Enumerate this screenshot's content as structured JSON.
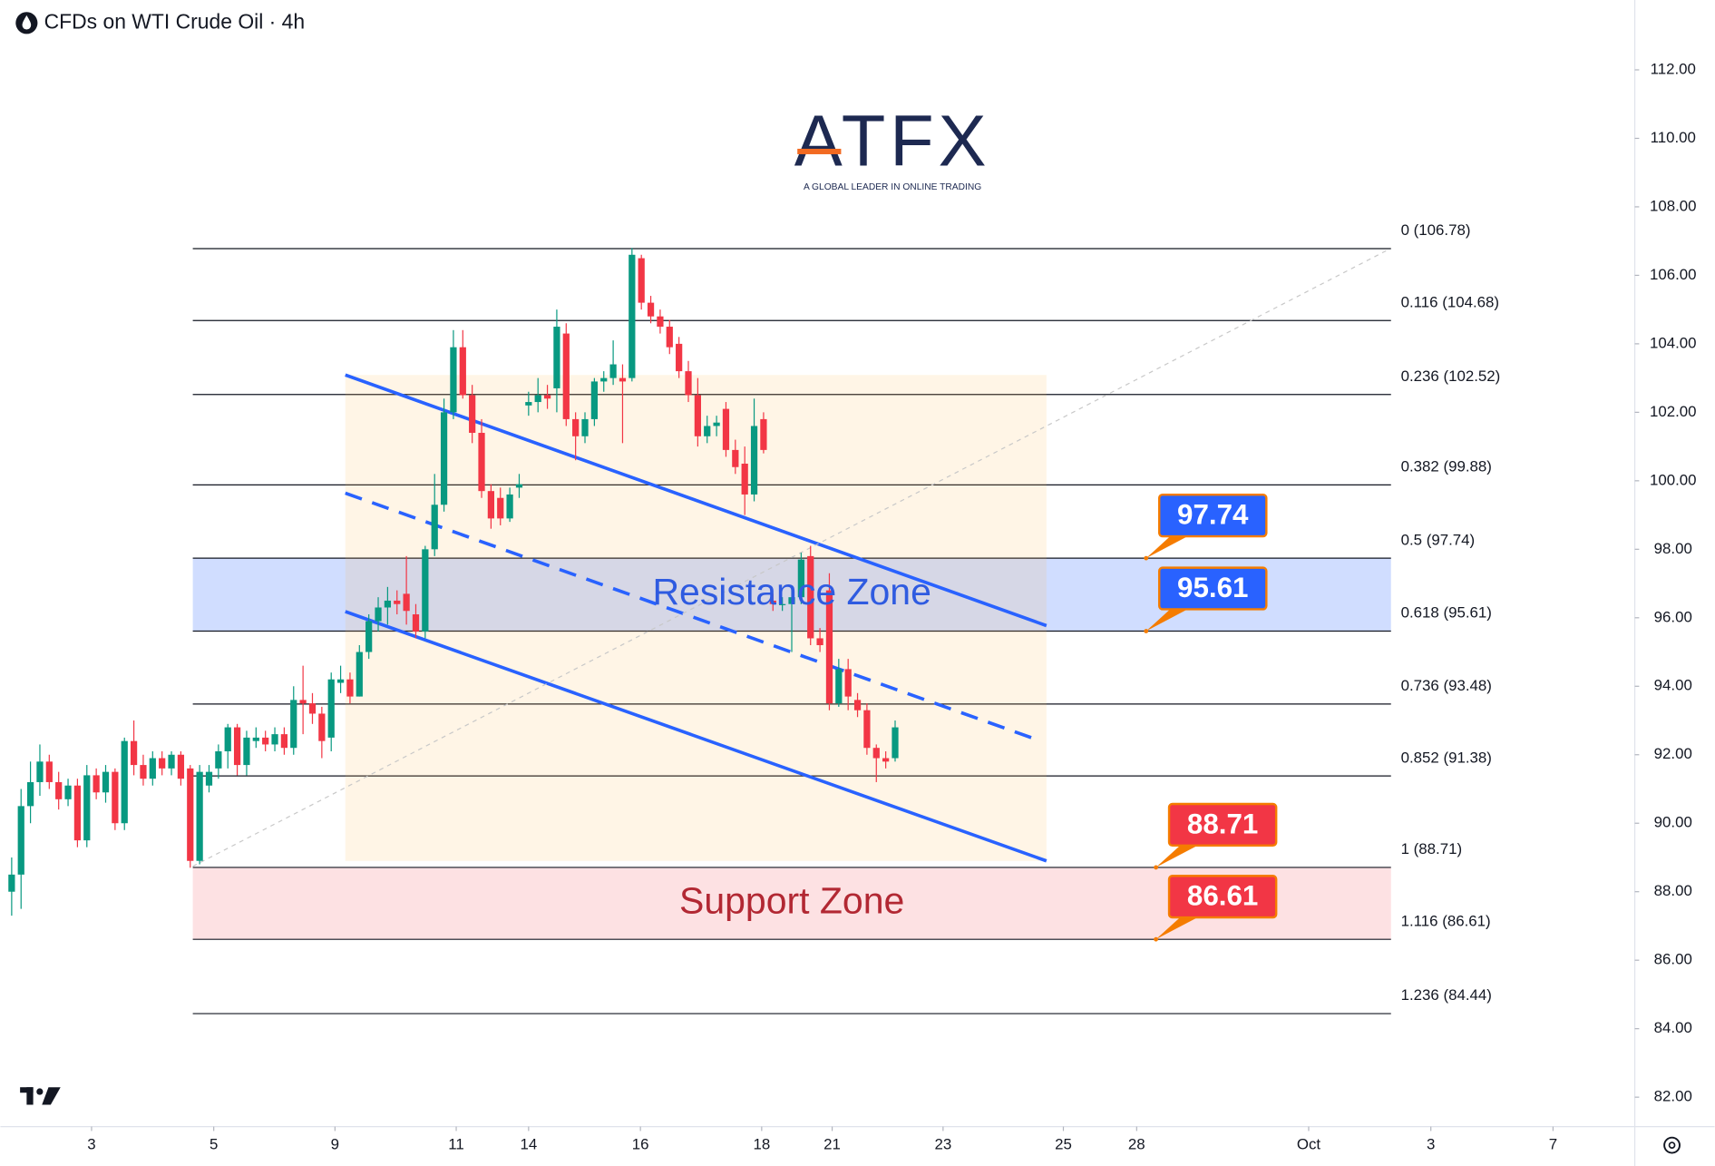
{
  "header": {
    "title": "CFDs on WTI Crude Oil · 4h"
  },
  "watermark": {
    "brand": "ATFX",
    "tagline": "A GLOBAL LEADER IN ONLINE TRADING"
  },
  "chart_data": {
    "type": "candlestick",
    "up_color": "#089981",
    "down_color": "#f23645",
    "ohlc": [
      [
        88,
        89,
        87.3,
        88.5
      ],
      [
        88.5,
        91,
        87.5,
        90.5
      ],
      [
        90.5,
        91.8,
        90,
        91.2
      ],
      [
        91.2,
        92.3,
        90.8,
        91.8
      ],
      [
        91.8,
        92,
        91,
        91.2
      ],
      [
        91.2,
        91.5,
        90.4,
        90.7
      ],
      [
        90.7,
        91.3,
        90.5,
        91.1
      ],
      [
        91.1,
        91.3,
        89.3,
        89.5
      ],
      [
        89.5,
        91.7,
        89.3,
        91.4
      ],
      [
        91.4,
        91.6,
        90.7,
        90.9
      ],
      [
        90.9,
        91.7,
        90.6,
        91.5
      ],
      [
        91.5,
        91.6,
        89.8,
        90
      ],
      [
        90,
        92.5,
        89.8,
        92.4
      ],
      [
        92.4,
        93,
        91.4,
        91.7
      ],
      [
        91.7,
        92,
        91.1,
        91.3
      ],
      [
        91.3,
        92.1,
        91.1,
        91.9
      ],
      [
        91.9,
        92.1,
        91.4,
        91.6
      ],
      [
        91.6,
        92.1,
        91.4,
        92
      ],
      [
        92,
        92.1,
        91.1,
        91.3
      ],
      [
        91.6,
        91.7,
        88.7,
        88.9
      ],
      [
        88.9,
        91.7,
        88.8,
        91.5
      ],
      [
        91.1,
        91.7,
        90.9,
        91.5
      ],
      [
        91.6,
        92.3,
        91.3,
        92.1
      ],
      [
        92.1,
        92.9,
        91.6,
        92.8
      ],
      [
        92.8,
        92.9,
        91.4,
        91.7
      ],
      [
        91.7,
        92.7,
        91.4,
        92.5
      ],
      [
        92.4,
        92.8,
        92.2,
        92.5
      ],
      [
        92.5,
        92.7,
        92.1,
        92.3
      ],
      [
        92.3,
        92.8,
        92.1,
        92.6
      ],
      [
        92.6,
        92.8,
        92,
        92.2
      ],
      [
        92.2,
        94,
        92,
        93.6
      ],
      [
        93.6,
        94.6,
        92.6,
        93.5
      ],
      [
        93.5,
        93.8,
        92.9,
        93.2
      ],
      [
        93.2,
        93.4,
        91.9,
        92.4
      ],
      [
        92.5,
        94.4,
        92.1,
        94.2
      ],
      [
        94.1,
        94.6,
        93.8,
        94.2
      ],
      [
        94.2,
        94.4,
        93.5,
        93.7
      ],
      [
        93.7,
        95.2,
        93.7,
        95
      ],
      [
        95,
        96.1,
        94.8,
        95.9
      ],
      [
        95.9,
        96.6,
        95.6,
        96.3
      ],
      [
        96.3,
        96.9,
        95.8,
        96.5
      ],
      [
        96.5,
        96.8,
        96.1,
        96.4
      ],
      [
        96.7,
        97.8,
        95.8,
        96.2
      ],
      [
        96.1,
        96.4,
        95.4,
        95.6
      ],
      [
        95.6,
        98.1,
        95.4,
        98
      ],
      [
        98,
        100.2,
        97.8,
        99.3
      ],
      [
        99.3,
        102.4,
        99.1,
        102
      ],
      [
        102,
        104.4,
        101.8,
        103.9
      ],
      [
        103.9,
        104.4,
        102.4,
        102.5
      ],
      [
        102.5,
        102.8,
        101.1,
        101.4
      ],
      [
        101.4,
        101.8,
        99.5,
        99.7
      ],
      [
        99.7,
        99.9,
        98.6,
        98.9
      ],
      [
        99.5,
        99.8,
        98.7,
        98.9
      ],
      [
        98.9,
        99.8,
        98.8,
        99.6
      ],
      [
        99.8,
        100.2,
        99.5,
        99.9
      ],
      [
        102.2,
        102.6,
        101.9,
        102.3
      ],
      [
        102.3,
        103,
        102,
        102.5
      ],
      [
        102.5,
        102.8,
        102.1,
        102.4
      ],
      [
        102.7,
        105,
        102,
        104.5
      ],
      [
        104.3,
        104.6,
        101.6,
        101.8
      ],
      [
        101.8,
        102,
        100.6,
        101.3
      ],
      [
        101.3,
        102,
        101.1,
        101.8
      ],
      [
        101.8,
        103,
        101.6,
        102.9
      ],
      [
        102.9,
        103.2,
        102.6,
        103
      ],
      [
        103,
        104.1,
        102.8,
        103.4
      ],
      [
        103,
        103.4,
        101.1,
        102.9
      ],
      [
        103,
        106.8,
        102.9,
        106.6
      ],
      [
        106.5,
        106.6,
        105,
        105.2
      ],
      [
        105.2,
        105.4,
        104.6,
        104.8
      ],
      [
        104.8,
        105,
        104.3,
        104.5
      ],
      [
        104.5,
        104.7,
        103.7,
        103.9
      ],
      [
        104,
        104.2,
        103,
        103.2
      ],
      [
        103.2,
        103.5,
        102.3,
        102.5
      ],
      [
        102.5,
        103,
        101,
        101.3
      ],
      [
        101.3,
        101.9,
        101.1,
        101.6
      ],
      [
        101.6,
        101.9,
        101.3,
        101.7
      ],
      [
        102.1,
        102.3,
        100.7,
        100.9
      ],
      [
        100.9,
        101.2,
        100.2,
        100.4
      ],
      [
        100.5,
        101,
        99,
        99.6
      ],
      [
        99.6,
        102.4,
        99.4,
        101.6
      ],
      [
        101.8,
        102,
        100.8,
        100.9
      ],
      [
        96.5,
        96.7,
        96.2,
        96.4
      ],
      [
        96.4,
        96.6,
        96.2,
        96.4
      ],
      [
        96.4,
        96.8,
        95,
        96.6
      ],
      [
        96.6,
        97.9,
        96.4,
        97.7
      ],
      [
        97.8,
        98.1,
        95.2,
        95.4
      ],
      [
        95.4,
        95.7,
        95,
        95.2
      ],
      [
        96.8,
        97.3,
        93.3,
        93.5
      ],
      [
        93.5,
        94.8,
        93.4,
        94.5
      ],
      [
        94.5,
        94.8,
        93.3,
        93.7
      ],
      [
        93.6,
        93.8,
        93.1,
        93.3
      ],
      [
        93.3,
        93.5,
        92,
        92.2
      ],
      [
        92.2,
        92.3,
        91.2,
        91.9
      ],
      [
        91.9,
        92.1,
        91.6,
        91.8
      ],
      [
        91.9,
        93,
        91.8,
        92.8
      ]
    ],
    "xlim": [
      -1.2,
      172.7
    ],
    "xticks": [
      {
        "value": 8.5,
        "label": "3"
      },
      {
        "value": 21.5,
        "label": "5"
      },
      {
        "value": 34.4,
        "label": "9"
      },
      {
        "value": 47.3,
        "label": "11"
      },
      {
        "value": 55,
        "label": "14"
      },
      {
        "value": 66.9,
        "label": "16"
      },
      {
        "value": 79.8,
        "label": "18"
      },
      {
        "value": 87.3,
        "label": "21"
      },
      {
        "value": 99.1,
        "label": "23"
      },
      {
        "value": 111.9,
        "label": "25"
      },
      {
        "value": 119.7,
        "label": "28"
      },
      {
        "value": 138,
        "label": "Oct"
      },
      {
        "value": 151,
        "label": "3"
      },
      {
        "value": 164,
        "label": "7"
      }
    ],
    "ylim": [
      81.14,
      114.04
    ],
    "yticks": [
      {
        "value": 82,
        "label": "82.00"
      },
      {
        "value": 84,
        "label": "84.00"
      },
      {
        "value": 86,
        "label": "86.00"
      },
      {
        "value": 88,
        "label": "88.00"
      },
      {
        "value": 90,
        "label": "90.00"
      },
      {
        "value": 92,
        "label": "92.00"
      },
      {
        "value": 94,
        "label": "94.00"
      },
      {
        "value": 96,
        "label": "96.00"
      },
      {
        "value": 98,
        "label": "98.00"
      },
      {
        "value": 100,
        "label": "100.00"
      },
      {
        "value": 102,
        "label": "102.00"
      },
      {
        "value": 104,
        "label": "104.00"
      },
      {
        "value": 106,
        "label": "106.00"
      },
      {
        "value": 108,
        "label": "108.00"
      },
      {
        "value": 110,
        "label": "110.00"
      },
      {
        "value": 112,
        "label": "112.00"
      }
    ],
    "fib_levels": [
      {
        "value": 106.78,
        "label": "0 (106.78)"
      },
      {
        "value": 104.68,
        "label": "0.116 (104.68)"
      },
      {
        "value": 102.52,
        "label": "0.236 (102.52)"
      },
      {
        "value": 99.88,
        "label": "0.382 (99.88)"
      },
      {
        "value": 97.74,
        "label": "0.5 (97.74)"
      },
      {
        "value": 95.61,
        "label": "0.618 (95.61)"
      },
      {
        "value": 93.48,
        "label": "0.736 (93.48)"
      },
      {
        "value": 91.38,
        "label": "0.852 (91.38)"
      },
      {
        "value": 88.71,
        "label": "1 (88.71)"
      },
      {
        "value": 86.61,
        "label": "1.116 (86.61)"
      },
      {
        "value": 84.44,
        "label": "1.236 (84.44)"
      }
    ],
    "zones": [
      {
        "name": "Resistance Zone",
        "low": 95.61,
        "high": 97.74,
        "color": "#2962ff",
        "text_color": "#2f5be0"
      },
      {
        "name": "Support Zone",
        "low": 86.61,
        "high": 88.71,
        "color": "#f23645",
        "text_color": "#b22833"
      }
    ],
    "channel": {
      "upper": {
        "x": [
          35.5,
          110.1
        ],
        "y": [
          103.09,
          95.77
        ]
      },
      "lower": {
        "x": [
          35.5,
          110.1
        ],
        "y": [
          96.18,
          88.9
        ]
      },
      "middle": {
        "x": [
          35.5,
          109.3
        ],
        "y": [
          99.64,
          92.42
        ]
      },
      "color": "#2962ff"
    }
  }
}
